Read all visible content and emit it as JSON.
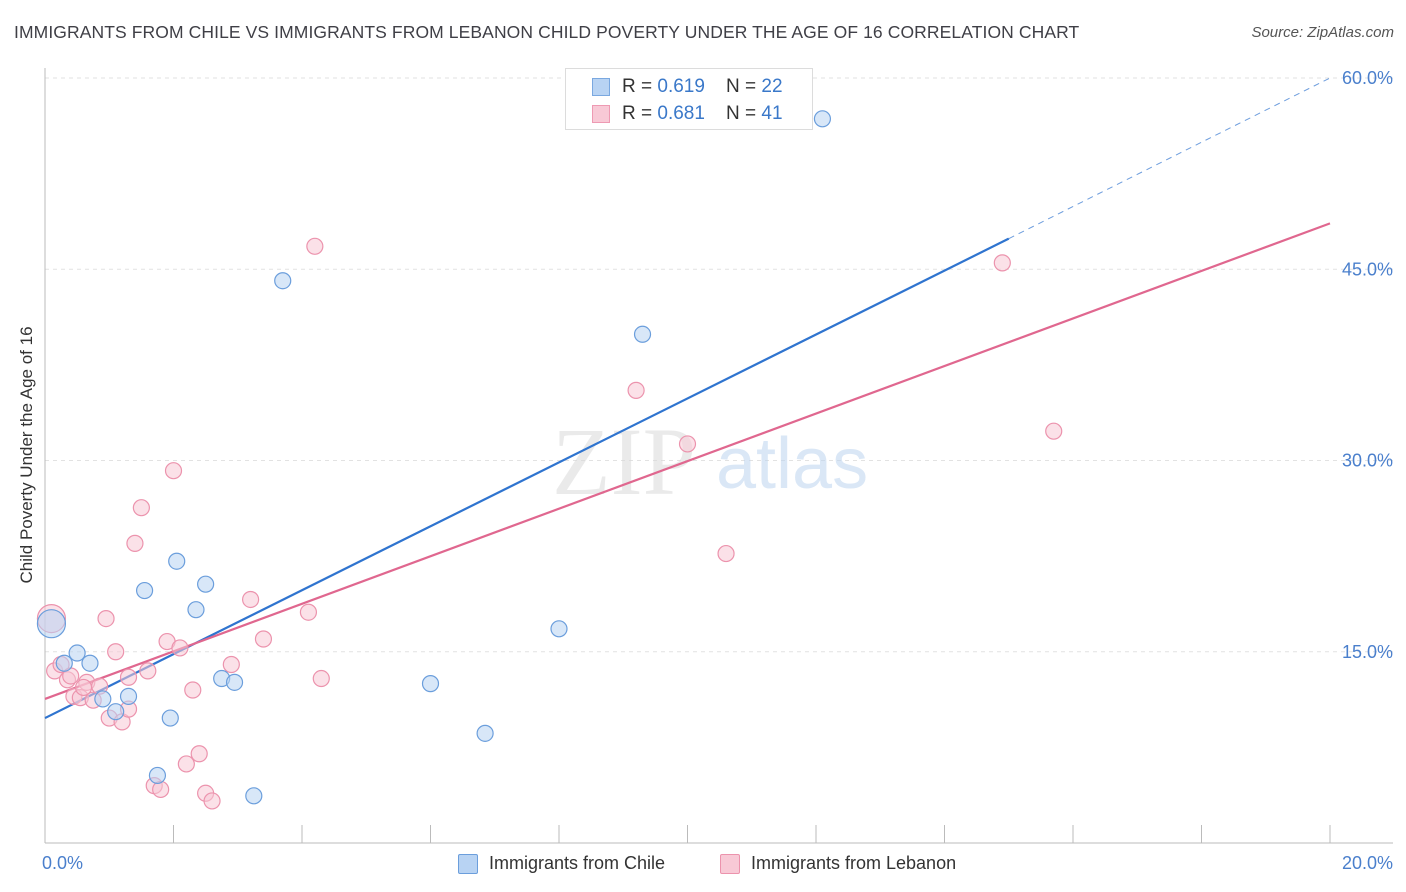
{
  "title": "IMMIGRANTS FROM CHILE VS IMMIGRANTS FROM LEBANON CHILD POVERTY UNDER THE AGE OF 16 CORRELATION CHART",
  "source": "Source: ZipAtlas.com",
  "watermark": {
    "part1": "ZIP",
    "part2": "atlas"
  },
  "legend": [
    {
      "r_label": "R = ",
      "r_value": "0.619",
      "n_label": "N = ",
      "n_value": "22",
      "swatch_fill": "#b8d3f3",
      "swatch_stroke": "#7aa8e0"
    },
    {
      "r_label": "R = ",
      "r_value": "0.681",
      "n_label": "N = ",
      "n_value": "41",
      "swatch_fill": "#f8c9d6",
      "swatch_stroke": "#ee9ab3"
    }
  ],
  "bottom_legend": [
    "Immigrants from Chile",
    "Immigrants from Lebanon"
  ],
  "colors": {
    "chile_fill": "#b8d3f3",
    "chile_stroke": "#6b9edc",
    "chile_line": "#2f74cf",
    "lebanon_fill": "#f8c9d6",
    "lebanon_stroke": "#ec93ad",
    "lebanon_line": "#e0678f",
    "tick_label": "#4a7fcc",
    "grid": "#e2e2e2"
  },
  "chart_data": {
    "type": "scatter",
    "xlabel": "",
    "ylabel": "Child Poverty Under the Age of 16",
    "xlim": [
      0,
      20
    ],
    "ylim": [
      0,
      60
    ],
    "x_tick_labels": [
      {
        "value": 0,
        "label": "0.0%"
      },
      {
        "value": 20,
        "label": "20.0%"
      }
    ],
    "y_tick_labels": [
      {
        "value": 15,
        "label": "15.0%"
      },
      {
        "value": 30,
        "label": "30.0%"
      },
      {
        "value": 45,
        "label": "45.0%"
      },
      {
        "value": 60,
        "label": "60.0%"
      }
    ],
    "grid": true,
    "series": [
      {
        "name": "Immigrants from Chile",
        "trend": {
          "x0": 0,
          "y0": 9.8,
          "x1": 15,
          "y1": 47.4,
          "dashed_to_x": 20,
          "dashed_to_y": 60.0
        },
        "points": [
          {
            "x": 0.1,
            "y": 17.2,
            "big": true
          },
          {
            "x": 0.3,
            "y": 14.1
          },
          {
            "x": 0.5,
            "y": 14.9
          },
          {
            "x": 0.7,
            "y": 14.1
          },
          {
            "x": 0.9,
            "y": 11.3
          },
          {
            "x": 1.1,
            "y": 10.3
          },
          {
            "x": 1.3,
            "y": 11.5
          },
          {
            "x": 1.55,
            "y": 19.8
          },
          {
            "x": 1.75,
            "y": 5.3
          },
          {
            "x": 1.95,
            "y": 9.8
          },
          {
            "x": 2.05,
            "y": 22.1
          },
          {
            "x": 2.35,
            "y": 18.3
          },
          {
            "x": 2.5,
            "y": 20.3
          },
          {
            "x": 2.75,
            "y": 12.9
          },
          {
            "x": 2.95,
            "y": 12.6
          },
          {
            "x": 3.25,
            "y": 3.7
          },
          {
            "x": 3.7,
            "y": 44.1
          },
          {
            "x": 6.0,
            "y": 12.5
          },
          {
            "x": 6.85,
            "y": 8.6
          },
          {
            "x": 8.0,
            "y": 16.8
          },
          {
            "x": 9.3,
            "y": 39.9
          },
          {
            "x": 12.1,
            "y": 56.8
          }
        ]
      },
      {
        "name": "Immigrants from Lebanon",
        "trend": {
          "x0": 0,
          "y0": 11.3,
          "x1": 20,
          "y1": 48.6
        },
        "points": [
          {
            "x": 0.1,
            "y": 17.6,
            "big": true
          },
          {
            "x": 0.15,
            "y": 13.5
          },
          {
            "x": 0.25,
            "y": 14.0
          },
          {
            "x": 0.35,
            "y": 12.8
          },
          {
            "x": 0.45,
            "y": 11.5
          },
          {
            "x": 0.55,
            "y": 11.4
          },
          {
            "x": 0.65,
            "y": 12.6
          },
          {
            "x": 0.75,
            "y": 11.2
          },
          {
            "x": 0.85,
            "y": 12.3
          },
          {
            "x": 0.95,
            "y": 17.6
          },
          {
            "x": 1.0,
            "y": 9.8
          },
          {
            "x": 1.1,
            "y": 15.0
          },
          {
            "x": 1.2,
            "y": 9.5
          },
          {
            "x": 1.3,
            "y": 13.0
          },
          {
            "x": 1.4,
            "y": 23.5
          },
          {
            "x": 1.5,
            "y": 26.3
          },
          {
            "x": 1.6,
            "y": 13.5
          },
          {
            "x": 1.7,
            "y": 4.5
          },
          {
            "x": 1.8,
            "y": 4.2
          },
          {
            "x": 1.9,
            "y": 15.8
          },
          {
            "x": 2.0,
            "y": 29.2
          },
          {
            "x": 2.1,
            "y": 15.3
          },
          {
            "x": 2.2,
            "y": 6.2
          },
          {
            "x": 2.3,
            "y": 12.0
          },
          {
            "x": 2.4,
            "y": 7.0
          },
          {
            "x": 2.5,
            "y": 3.9
          },
          {
            "x": 2.6,
            "y": 3.3
          },
          {
            "x": 2.9,
            "y": 14.0
          },
          {
            "x": 3.2,
            "y": 19.1
          },
          {
            "x": 3.4,
            "y": 16.0
          },
          {
            "x": 4.1,
            "y": 18.1
          },
          {
            "x": 4.2,
            "y": 46.8
          },
          {
            "x": 4.3,
            "y": 12.9
          },
          {
            "x": 9.2,
            "y": 35.5
          },
          {
            "x": 10.0,
            "y": 31.3
          },
          {
            "x": 10.6,
            "y": 22.7
          },
          {
            "x": 14.9,
            "y": 45.5
          },
          {
            "x": 15.7,
            "y": 32.3
          },
          {
            "x": 0.6,
            "y": 12.2
          },
          {
            "x": 1.3,
            "y": 10.5
          },
          {
            "x": 0.4,
            "y": 13.1
          }
        ]
      }
    ]
  }
}
